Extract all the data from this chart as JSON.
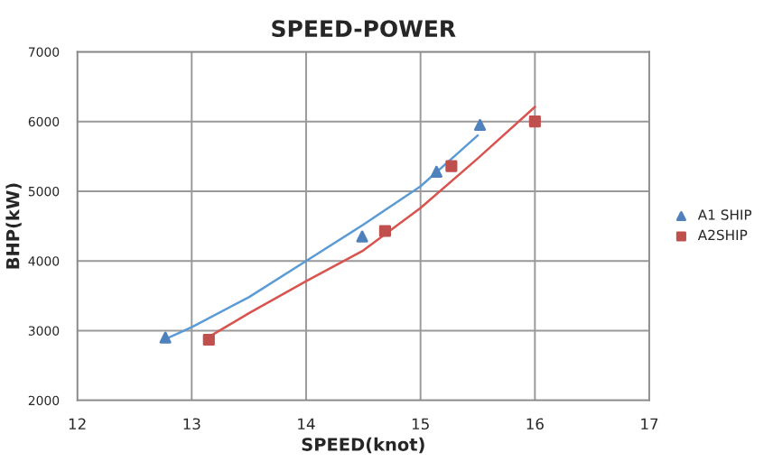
{
  "chart_data": {
    "type": "scatter",
    "title": "SPEED-POWER",
    "xlabel": "SPEED(knot)",
    "ylabel": "BHP(kW)",
    "xlim": [
      12,
      17
    ],
    "xticks": [
      12,
      13,
      14,
      15,
      16,
      17
    ],
    "ylim": [
      2000,
      7000
    ],
    "yticks": [
      2000,
      3000,
      4000,
      5000,
      6000,
      7000
    ],
    "grid": true,
    "legend": "right",
    "series": [
      {
        "name": "A1 SHIP",
        "marker": "triangle",
        "color": "#4f81bd",
        "x": [
          12.77,
          14.49,
          15.14,
          15.52
        ],
        "values": [
          2900,
          4350,
          5280,
          5950
        ]
      },
      {
        "name": "A2SHIP",
        "marker": "square",
        "color": "#c0504d",
        "x": [
          13.15,
          14.69,
          15.27,
          16.0
        ],
        "values": [
          2870,
          4430,
          5360,
          6000
        ]
      },
      {
        "type": "line",
        "marker": "none",
        "color": "#5b9bd5",
        "x": [
          12.8,
          13.0,
          13.5,
          14.0,
          14.5,
          15.0,
          15.5
        ],
        "values": [
          2900,
          3050,
          3480,
          4000,
          4520,
          5070,
          5800
        ]
      },
      {
        "type": "line",
        "marker": "none",
        "color": "#d9534f",
        "x": [
          13.15,
          13.5,
          14.0,
          14.5,
          15.0,
          15.5,
          16.0
        ],
        "values": [
          2910,
          3250,
          3710,
          4150,
          4760,
          5470,
          6210
        ]
      }
    ]
  }
}
